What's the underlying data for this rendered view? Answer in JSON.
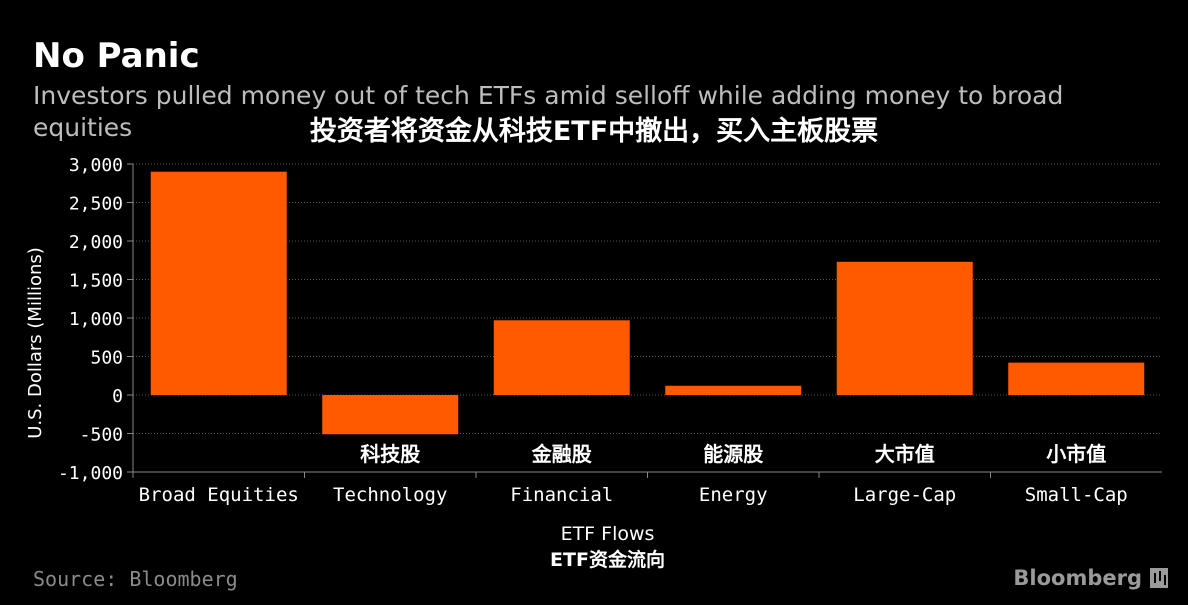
{
  "header": {
    "title": "No Panic",
    "subtitle": "Investors pulled money out of tech ETFs amid selloff while adding money to broad equities",
    "subtitle_cn": "投资者将资金从科技ETF中撤出，买入主板股票"
  },
  "footer": {
    "source": "Source: Bloomberg",
    "brand": "Bloomberg"
  },
  "colors": {
    "background": "#000000",
    "bar": "#ff5a00",
    "grid": "#555555",
    "axis_text": "#ffffff"
  },
  "chart_data": {
    "type": "bar",
    "categories": [
      "Broad Equities",
      "Technology",
      "Financial",
      "Energy",
      "Large-Cap",
      "Small-Cap"
    ],
    "categories_cn": [
      "",
      "科技股",
      "金融股",
      "能源股",
      "大市值",
      "小市值"
    ],
    "values": [
      2900,
      -510,
      970,
      120,
      1730,
      420
    ],
    "ylabel": "U.S. Dollars (Millions)",
    "xlabel": "ETF Flows",
    "xlabel_cn": "ETF资金流向",
    "ylim": [
      -1000,
      3000
    ],
    "yticks": [
      -1000,
      -500,
      0,
      500,
      1000,
      1500,
      2000,
      2500,
      3000
    ],
    "ytick_labels": [
      "-1,000",
      "-500",
      "0",
      "500",
      "1,000",
      "1,500",
      "2,000",
      "2,500",
      "3,000"
    ],
    "grid": true,
    "legend": "none"
  }
}
